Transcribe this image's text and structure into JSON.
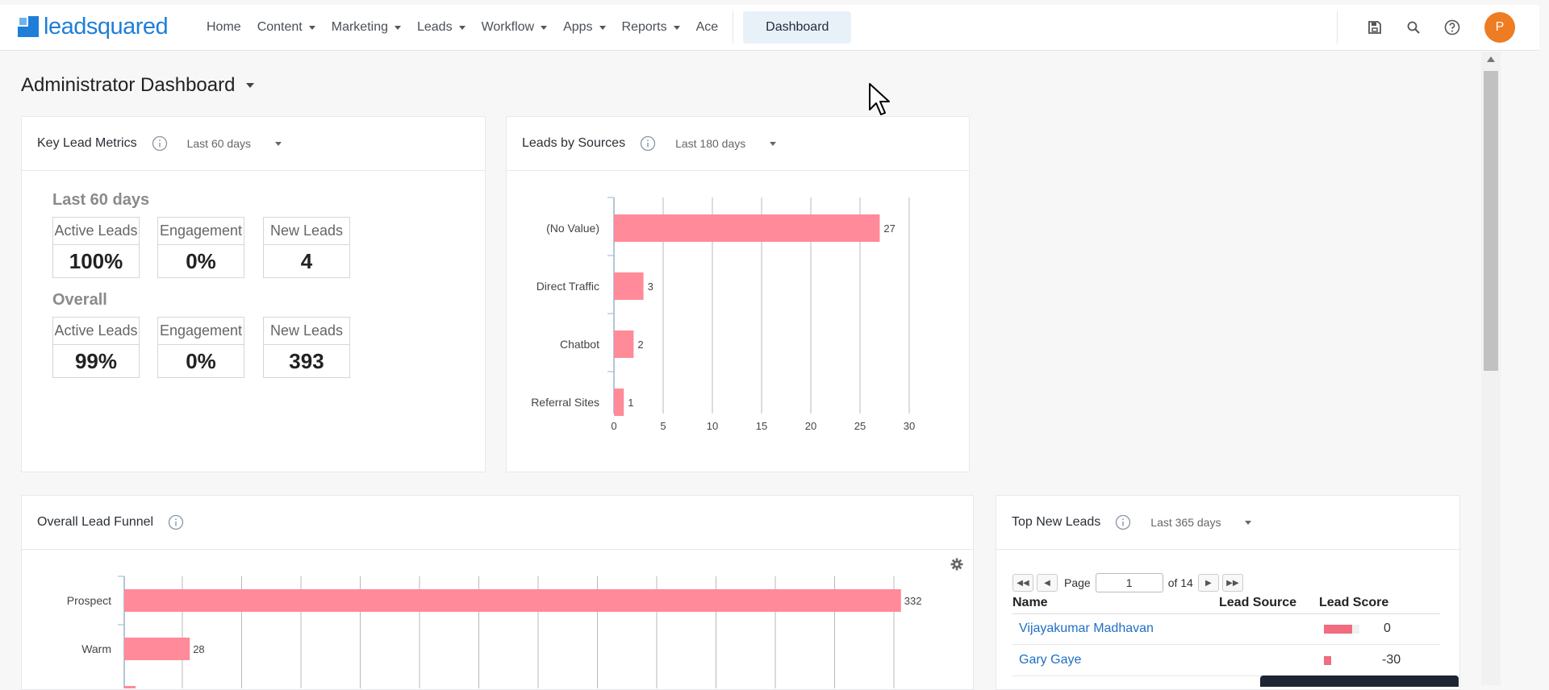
{
  "app": {
    "brand": "leadsquared"
  },
  "nav": {
    "items": [
      {
        "label": "Home",
        "caret": false
      },
      {
        "label": "Content",
        "caret": true
      },
      {
        "label": "Marketing",
        "caret": true
      },
      {
        "label": "Leads",
        "caret": true
      },
      {
        "label": "Workflow",
        "caret": true
      },
      {
        "label": "Apps",
        "caret": true
      },
      {
        "label": "Reports",
        "caret": true
      },
      {
        "label": "Ace",
        "caret": false
      }
    ],
    "active": "Dashboard",
    "right_icons": [
      "save-icon",
      "search-icon",
      "help-icon"
    ],
    "avatar_initial": "P"
  },
  "page": {
    "title": "Administrator Dashboard"
  },
  "key_metrics": {
    "title": "Key Lead Metrics",
    "range": "Last 60 days",
    "sections": [
      {
        "heading": "Last 60 days",
        "metrics": [
          {
            "label": "Active Leads",
            "value": "100%"
          },
          {
            "label": "Engagement",
            "value": "0%"
          },
          {
            "label": "New Leads",
            "value": "4"
          }
        ]
      },
      {
        "heading": "Overall",
        "metrics": [
          {
            "label": "Active Leads",
            "value": "99%"
          },
          {
            "label": "Engagement",
            "value": "0%"
          },
          {
            "label": "New Leads",
            "value": "393"
          }
        ]
      }
    ]
  },
  "leads_by_sources": {
    "title": "Leads by Sources",
    "range": "Last 180 days"
  },
  "lead_funnel": {
    "title": "Overall Lead Funnel"
  },
  "top_new_leads": {
    "title": "Top New Leads",
    "range": "Last 365 days",
    "pager": {
      "page_label": "Page",
      "page": "1",
      "of_label": "of 14"
    },
    "columns": [
      "Name",
      "Lead Source",
      "Lead Score"
    ],
    "rows": [
      {
        "name": "Vijayakumar Madhavan",
        "source": "",
        "score": "0",
        "bar": 0.8
      },
      {
        "name": "Gary Gaye",
        "source": "",
        "score": "-30",
        "bar": 0.2
      }
    ]
  },
  "chart_data": [
    {
      "type": "bar",
      "orientation": "horizontal",
      "title": "Leads by Sources",
      "categories": [
        "(No Value)",
        "Direct Traffic",
        "Chatbot",
        "Referral Sites"
      ],
      "values": [
        27,
        3,
        2,
        1
      ],
      "xlim": [
        0,
        30
      ],
      "xticks": [
        0,
        5,
        10,
        15,
        20,
        25,
        30
      ],
      "color": "#ff8a99",
      "grid": true
    },
    {
      "type": "bar",
      "orientation": "horizontal",
      "title": "Overall Lead Funnel",
      "categories": [
        "Prospect",
        "Warm"
      ],
      "values": [
        332,
        28
      ],
      "color": "#ff8a99",
      "grid": true
    }
  ]
}
